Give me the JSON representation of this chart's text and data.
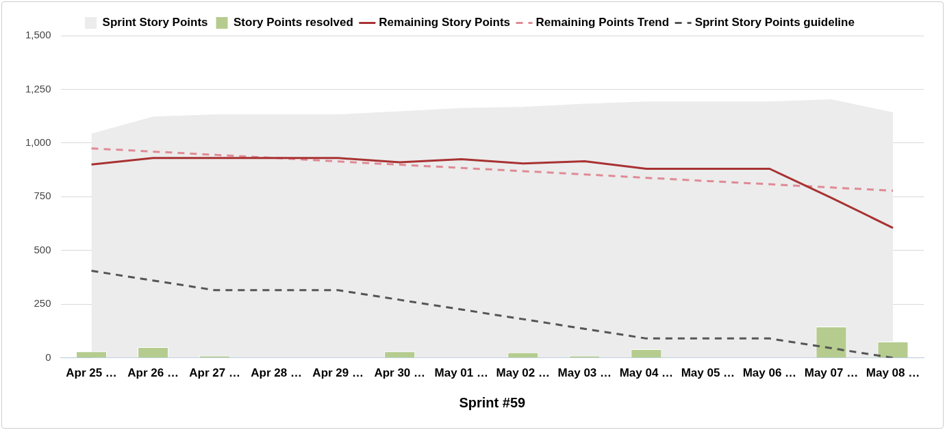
{
  "chart_data": {
    "type": "line",
    "xlabel": "Sprint #59",
    "categories": [
      "Apr 25 …",
      "Apr 26 …",
      "Apr 27 …",
      "Apr 28 …",
      "Apr 29 …",
      "Apr 30 …",
      "May 01 …",
      "May 02 …",
      "May 03 …",
      "May 04 …",
      "May 05 …",
      "May 06 …",
      "May 07 …",
      "May 08 …"
    ],
    "series": [
      {
        "name": "Sprint Story Points",
        "type": "area",
        "color": "#ececec",
        "values": [
          1040,
          1120,
          1130,
          1130,
          1130,
          1145,
          1160,
          1165,
          1180,
          1190,
          1190,
          1190,
          1200,
          1140
        ]
      },
      {
        "name": "Story Points resolved",
        "type": "bar",
        "color": "#b5cc8e",
        "values": [
          30,
          50,
          10,
          0,
          0,
          30,
          0,
          25,
          10,
          40,
          0,
          0,
          145,
          75
        ]
      },
      {
        "name": "Remaining Story Points",
        "color": "#a83232",
        "line_style": "solid",
        "values": [
          900,
          930,
          930,
          930,
          930,
          910,
          925,
          905,
          915,
          880,
          880,
          880,
          745,
          605
        ]
      },
      {
        "name": "Remaining Points Trend",
        "color": "#e08a95",
        "line_style": "dashed",
        "values": [
          975,
          960,
          945,
          930,
          914,
          899,
          884,
          869,
          854,
          838,
          823,
          808,
          793,
          778
        ]
      },
      {
        "name": "Sprint Story Points guideline",
        "color": "#555555",
        "line_style": "dashed",
        "values": [
          405,
          360,
          315,
          315,
          315,
          270,
          225,
          180,
          135,
          90,
          90,
          90,
          45,
          0
        ]
      }
    ],
    "ylim": [
      0,
      1500
    ],
    "yticks": [
      0,
      250,
      500,
      750,
      {
        "value": 1000,
        "label": "1,000"
      },
      {
        "value": 1250,
        "label": "1,250"
      },
      {
        "value": 1500,
        "label": "1,500"
      }
    ],
    "grid": "y",
    "legend": "top",
    "marker": "none"
  }
}
